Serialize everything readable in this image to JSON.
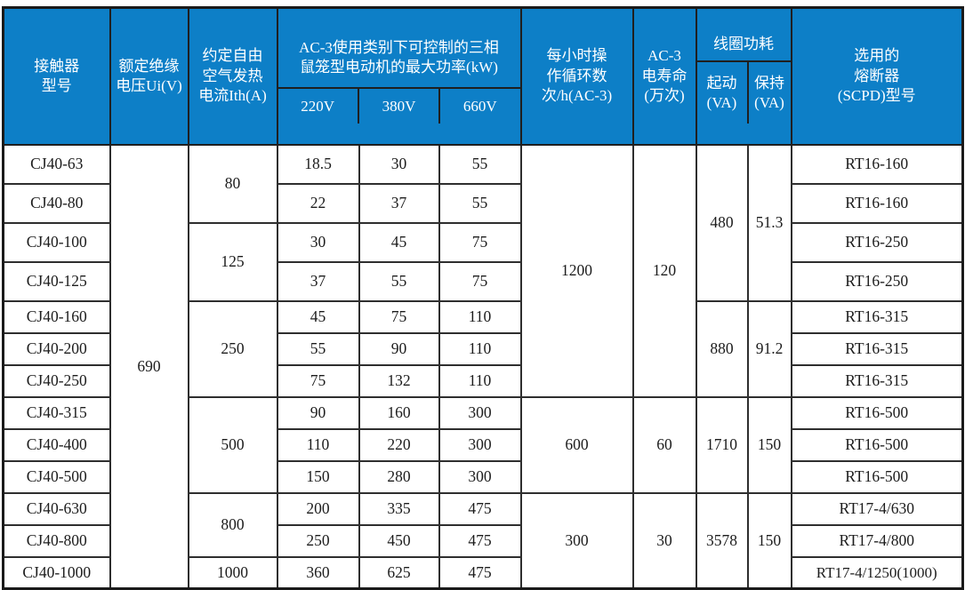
{
  "header": {
    "model": "接触器\n型号",
    "ui": "额定绝缘\n电压Ui(V)",
    "ith": "约定自由\n空气发热\n电流Ith(A)",
    "power_group": "AC-3使用类别下可控制的三相\n鼠笼型电动机的最大功率(kW)",
    "power_cols": [
      "220V",
      "380V",
      "660V"
    ],
    "cycles": "每小时操\n作循环数\n次/h(AC-3)",
    "life": "AC-3\n电寿命\n(万次)",
    "coil_group": "线圈功耗",
    "coil_cols": [
      "起动\n(VA)",
      "保持\n(VA)"
    ],
    "fuse": "选用的\n熔断器\n(SCPD)型号"
  },
  "merged": {
    "ui_all": "690",
    "ith": [
      "80",
      "125",
      "250",
      "500",
      "800",
      "1000"
    ],
    "cycles": [
      "1200",
      "600",
      "300"
    ],
    "life": [
      "120",
      "60",
      "30"
    ],
    "coil_start": [
      "480",
      "880",
      "1710",
      "3578"
    ],
    "coil_hold": [
      "51.3",
      "91.2",
      "150",
      "150"
    ]
  },
  "rows": [
    {
      "model": "CJ40-63",
      "p220": "18.5",
      "p380": "30",
      "p660": "55",
      "fuse": "RT16-160"
    },
    {
      "model": "CJ40-80",
      "p220": "22",
      "p380": "37",
      "p660": "55",
      "fuse": "RT16-160"
    },
    {
      "model": "CJ40-100",
      "p220": "30",
      "p380": "45",
      "p660": "75",
      "fuse": "RT16-250"
    },
    {
      "model": "CJ40-125",
      "p220": "37",
      "p380": "55",
      "p660": "75",
      "fuse": "RT16-250"
    },
    {
      "model": "CJ40-160",
      "p220": "45",
      "p380": "75",
      "p660": "110",
      "fuse": "RT16-315"
    },
    {
      "model": "CJ40-200",
      "p220": "55",
      "p380": "90",
      "p660": "110",
      "fuse": "RT16-315"
    },
    {
      "model": "CJ40-250",
      "p220": "75",
      "p380": "132",
      "p660": "110",
      "fuse": "RT16-315"
    },
    {
      "model": "CJ40-315",
      "p220": "90",
      "p380": "160",
      "p660": "300",
      "fuse": "RT16-500"
    },
    {
      "model": "CJ40-400",
      "p220": "110",
      "p380": "220",
      "p660": "300",
      "fuse": "RT16-500"
    },
    {
      "model": "CJ40-500",
      "p220": "150",
      "p380": "280",
      "p660": "300",
      "fuse": "RT16-500"
    },
    {
      "model": "CJ40-630",
      "p220": "200",
      "p380": "335",
      "p660": "475",
      "fuse": "RT17-4/630"
    },
    {
      "model": "CJ40-800",
      "p220": "250",
      "p380": "450",
      "p660": "475",
      "fuse": "RT17-4/800"
    },
    {
      "model": "CJ40-1000",
      "p220": "360",
      "p380": "625",
      "p660": "475",
      "fuse": "RT17-4/1250(1000)"
    }
  ],
  "colors": {
    "header_bg": "#0d7fc7",
    "header_text": "#ffffff",
    "grid_line": "#2e2e2e",
    "body_text": "#1c1c1c"
  }
}
